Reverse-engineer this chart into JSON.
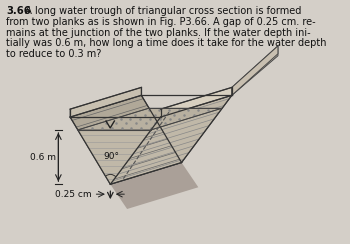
{
  "bg_color": "#d4cfc8",
  "text_color": "#111111",
  "depth_label": "0.6 m",
  "gap_label": "0.25 cm",
  "angle_label": "90°",
  "fig_width": 3.5,
  "fig_height": 2.44,
  "dpi": 100,
  "title_bold": "3.66",
  "lines": [
    "  A long water trough of triangular cross section is formed",
    "from two planks as is shown in Fig. P3.66. A gap of 0.25 cm. re-",
    "mains at the junction of the two planks. If the water depth ini-",
    "tially was 0.6 m, how long a time does it take for the water depth",
    "to reduce to 0.3 m?"
  ]
}
